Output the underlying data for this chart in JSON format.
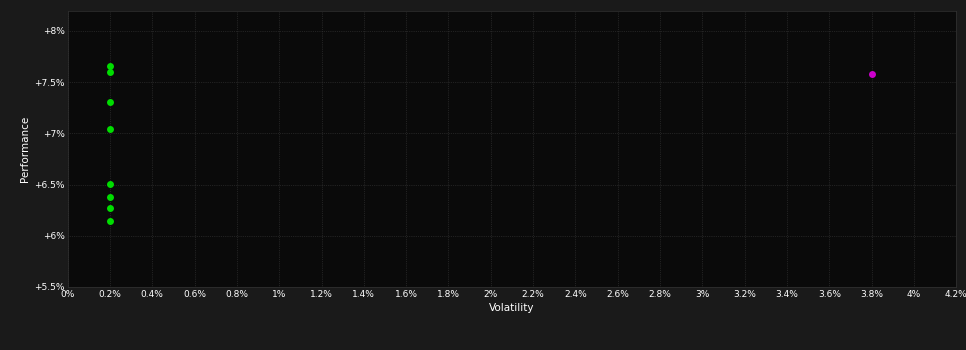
{
  "background_color": "#1a1a1a",
  "plot_bg_color": "#0a0a0a",
  "grid_color": "#3a3a3a",
  "text_color": "#ffffff",
  "xlabel": "Volatility",
  "ylabel": "Performance",
  "xlim": [
    0.0,
    0.042
  ],
  "ylim": [
    0.055,
    0.082
  ],
  "xtick_values": [
    0.0,
    0.002,
    0.004,
    0.006,
    0.008,
    0.01,
    0.012,
    0.014,
    0.016,
    0.018,
    0.02,
    0.022,
    0.024,
    0.026,
    0.028,
    0.03,
    0.032,
    0.034,
    0.036,
    0.038,
    0.04,
    0.042
  ],
  "xtick_labels": [
    "0%",
    "0.2%",
    "0.4%",
    "0.6%",
    "0.8%",
    "1%",
    "1.2%",
    "1.4%",
    "1.6%",
    "1.8%",
    "2%",
    "2.2%",
    "2.4%",
    "2.6%",
    "2.8%",
    "3%",
    "3.2%",
    "3.4%",
    "3.6%",
    "3.8%",
    "4%",
    "4.2%"
  ],
  "ytick_values": [
    0.055,
    0.06,
    0.065,
    0.07,
    0.075,
    0.08
  ],
  "ytick_labels": [
    "+5.5%",
    "+6%",
    "+6.5%",
    "+7%",
    "+7.5%",
    "+8%"
  ],
  "green_points": [
    [
      0.002,
      0.07655
    ],
    [
      0.002,
      0.07595
    ],
    [
      0.002,
      0.0731
    ],
    [
      0.002,
      0.07045
    ],
    [
      0.002,
      0.0651
    ],
    [
      0.002,
      0.0638
    ],
    [
      0.002,
      0.0627
    ],
    [
      0.002,
      0.0614
    ]
  ],
  "magenta_points": [
    [
      0.038,
      0.0758
    ]
  ],
  "green_color": "#00dd00",
  "magenta_color": "#cc00cc",
  "marker_size": 5,
  "figsize": [
    9.66,
    3.5
  ],
  "dpi": 100
}
